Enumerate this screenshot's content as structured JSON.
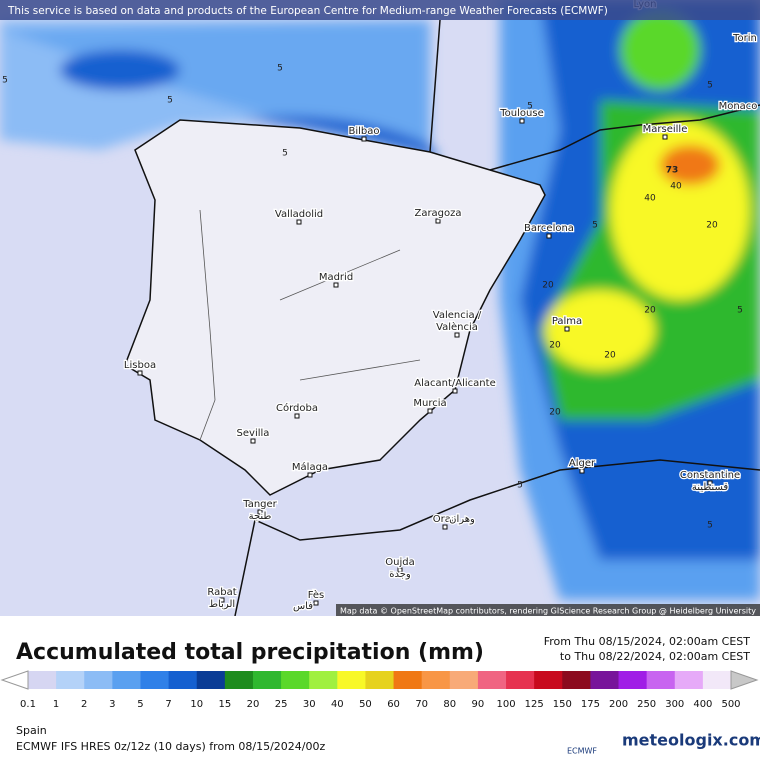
{
  "notice": "This service is based on data and products of the European Centre for Medium-range Weather Forecasts (ECMWF)",
  "cities": [
    "Lyon",
    "Torin",
    "Monaco",
    "Toulouse",
    "Marseille",
    "Bilbao",
    "Valladolid",
    "Zaragoza",
    "Barcelona",
    "Madrid",
    "Valencia /",
    "València",
    "Palma",
    "Lisboa",
    "Alacant/Alicante",
    "Murcia",
    "Córdoba",
    "Sevilla",
    "Málaga",
    "Alger",
    "Constantine",
    "قسنطينة",
    "Tanger",
    "طنجة",
    "Oran",
    "وهران",
    "Oujda",
    "وجدة",
    "Rabat",
    "الرباط",
    "Fès",
    "فاس"
  ],
  "contour_labels": [
    "5",
    "5",
    "5",
    "5",
    "5",
    "5",
    "5",
    "5",
    "5",
    "5",
    "20",
    "20",
    "20",
    "20",
    "20",
    "20",
    "40",
    "40",
    "73"
  ],
  "attribution": "Map data © OpenStreetMap contributors, rendering GIScience Research Group @ Heidelberg University",
  "title": "Accumulated total precipitation (mm)",
  "from": "From Thu 08/15/2024, 02:00am CEST",
  "to": "to Thu 08/22/2024, 02:00am CEST",
  "legend": {
    "labels": [
      "0.1",
      "1",
      "2",
      "3",
      "5",
      "7",
      "10",
      "15",
      "20",
      "25",
      "30",
      "40",
      "50",
      "60",
      "70",
      "80",
      "90",
      "100",
      "125",
      "150",
      "175",
      "200",
      "250",
      "300",
      "400",
      "500"
    ],
    "colors": [
      "#d6d6f2",
      "#b4d2f8",
      "#8cbcf5",
      "#5aa0f0",
      "#2f80e8",
      "#1560d0",
      "#0a3c96",
      "#1e8c1e",
      "#2fb82f",
      "#5ad82a",
      "#a0f040",
      "#f8f828",
      "#e6d21e",
      "#f07814",
      "#f89646",
      "#f8aa78",
      "#f06482",
      "#e63250",
      "#c80a1e",
      "#8c0a1e",
      "#78149a",
      "#a01ee6",
      "#c864f0",
      "#e6aaf8",
      "#f2e8f8"
    ],
    "below_color": "#ffffff",
    "above_color": "#c8c8c8"
  },
  "region": "Spain",
  "model": "ECMWF IFS HRES 0z/12z (10 days) from  08/15/2024/00z",
  "logo_ecmwf": "ECMWF",
  "logo_meteologix": "meteologix.com"
}
